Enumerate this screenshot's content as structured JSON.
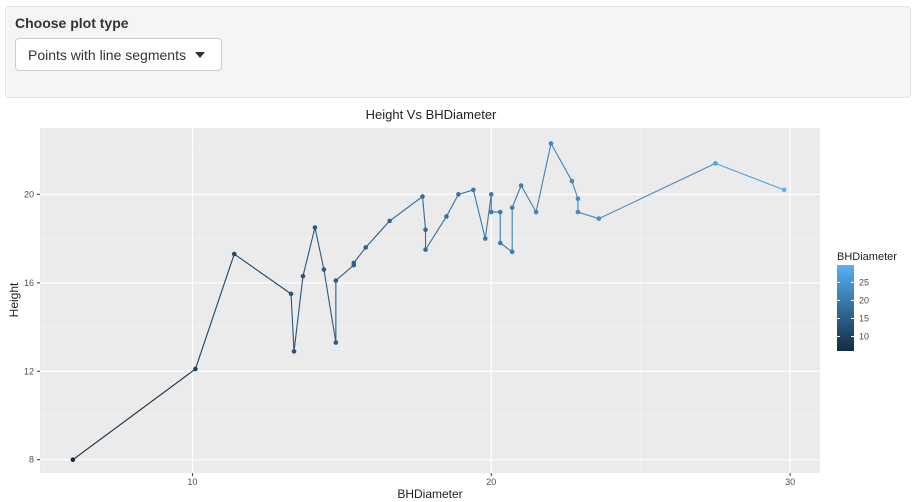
{
  "controls": {
    "label": "Choose plot type",
    "selected": "Points with line segments"
  },
  "chart_data": {
    "type": "line",
    "title": "Height Vs BHDiameter",
    "xlabel": "BHDiameter",
    "ylabel": "Height",
    "xlim": [
      4.9,
      31.0
    ],
    "ylim": [
      7.4,
      23.0
    ],
    "xticks": [
      10,
      20,
      30
    ],
    "yticks": [
      8,
      12,
      16,
      20
    ],
    "grid": true,
    "legend": {
      "title": "BHDiameter",
      "position": "right",
      "ticks": [
        10,
        15,
        20,
        25
      ],
      "range": [
        6,
        29.8
      ]
    },
    "colors": {
      "low": "#132b43",
      "high": "#56b1f7",
      "panel": "#ebebeb",
      "grid": "#ffffff"
    },
    "x": [
      6.0,
      10.1,
      11.4,
      13.3,
      13.4,
      13.7,
      14.1,
      14.4,
      14.8,
      14.8,
      15.4,
      15.4,
      15.8,
      16.6,
      17.7,
      17.8,
      17.8,
      18.5,
      18.9,
      19.4,
      19.8,
      20.0,
      20.0,
      20.3,
      20.3,
      20.7,
      20.7,
      21.0,
      21.5,
      22.0,
      22.7,
      22.9,
      22.9,
      23.6,
      27.5,
      29.8
    ],
    "y": [
      8.0,
      12.1,
      17.3,
      15.5,
      12.9,
      16.3,
      18.5,
      16.6,
      13.3,
      16.1,
      16.8,
      16.9,
      17.6,
      18.8,
      19.9,
      18.4,
      17.5,
      19.0,
      20.0,
      20.2,
      18.0,
      20.0,
      19.2,
      19.2,
      17.8,
      17.4,
      19.4,
      20.4,
      19.2,
      22.3,
      20.6,
      19.8,
      19.2,
      18.9,
      21.4,
      20.2
    ]
  }
}
